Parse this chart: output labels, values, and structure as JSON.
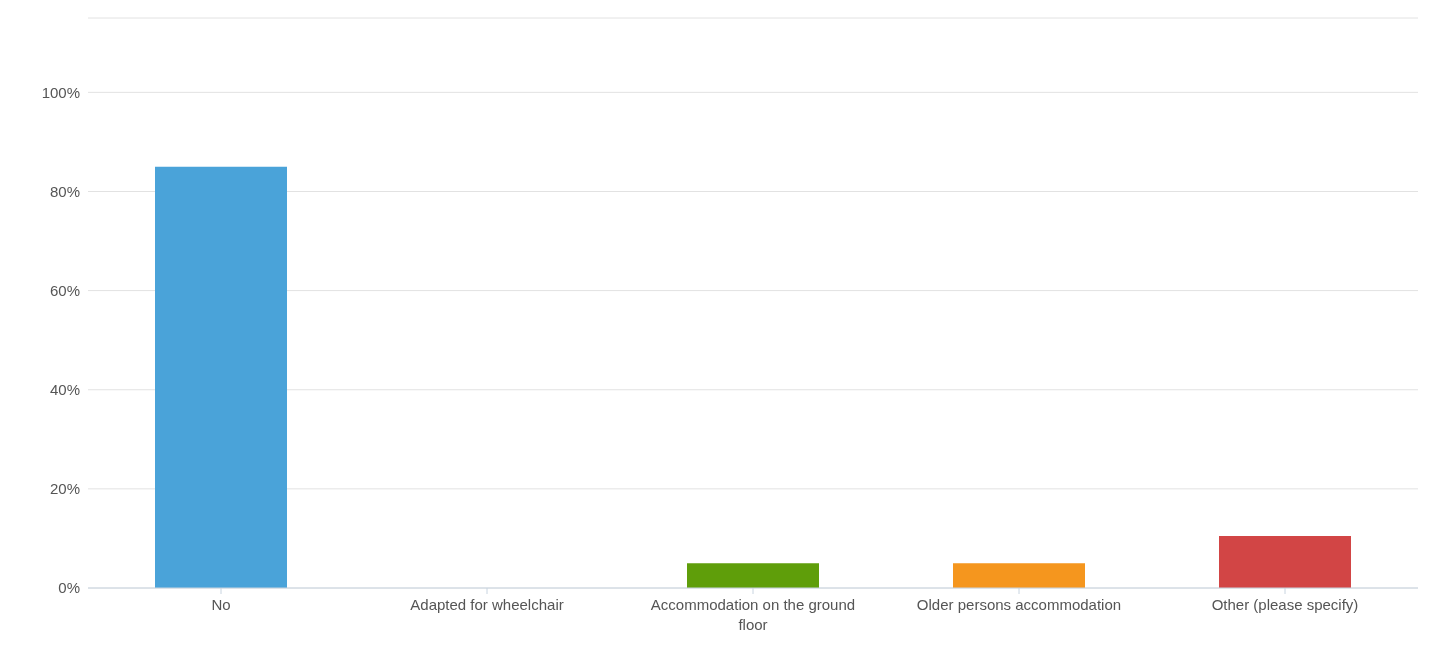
{
  "chart_data": {
    "type": "bar",
    "categories": [
      "No",
      "Adapted for wheelchair",
      "Accommodation on the ground floor",
      "Older persons accommodation",
      "Other (please specify)"
    ],
    "values": [
      85,
      0,
      5,
      5,
      10.5
    ],
    "colors": [
      "#4aa3d9",
      "#6e4f7e",
      "#5f9e0a",
      "#f5961e",
      "#d24545"
    ],
    "ylim": [
      0,
      115
    ],
    "yticks": [
      {
        "value": 0,
        "label": "0%"
      },
      {
        "value": 20,
        "label": "20%"
      },
      {
        "value": 40,
        "label": "40%"
      },
      {
        "value": 60,
        "label": "60%"
      },
      {
        "value": 80,
        "label": "80%"
      },
      {
        "value": 100,
        "label": "100%"
      }
    ],
    "grid": "y"
  }
}
